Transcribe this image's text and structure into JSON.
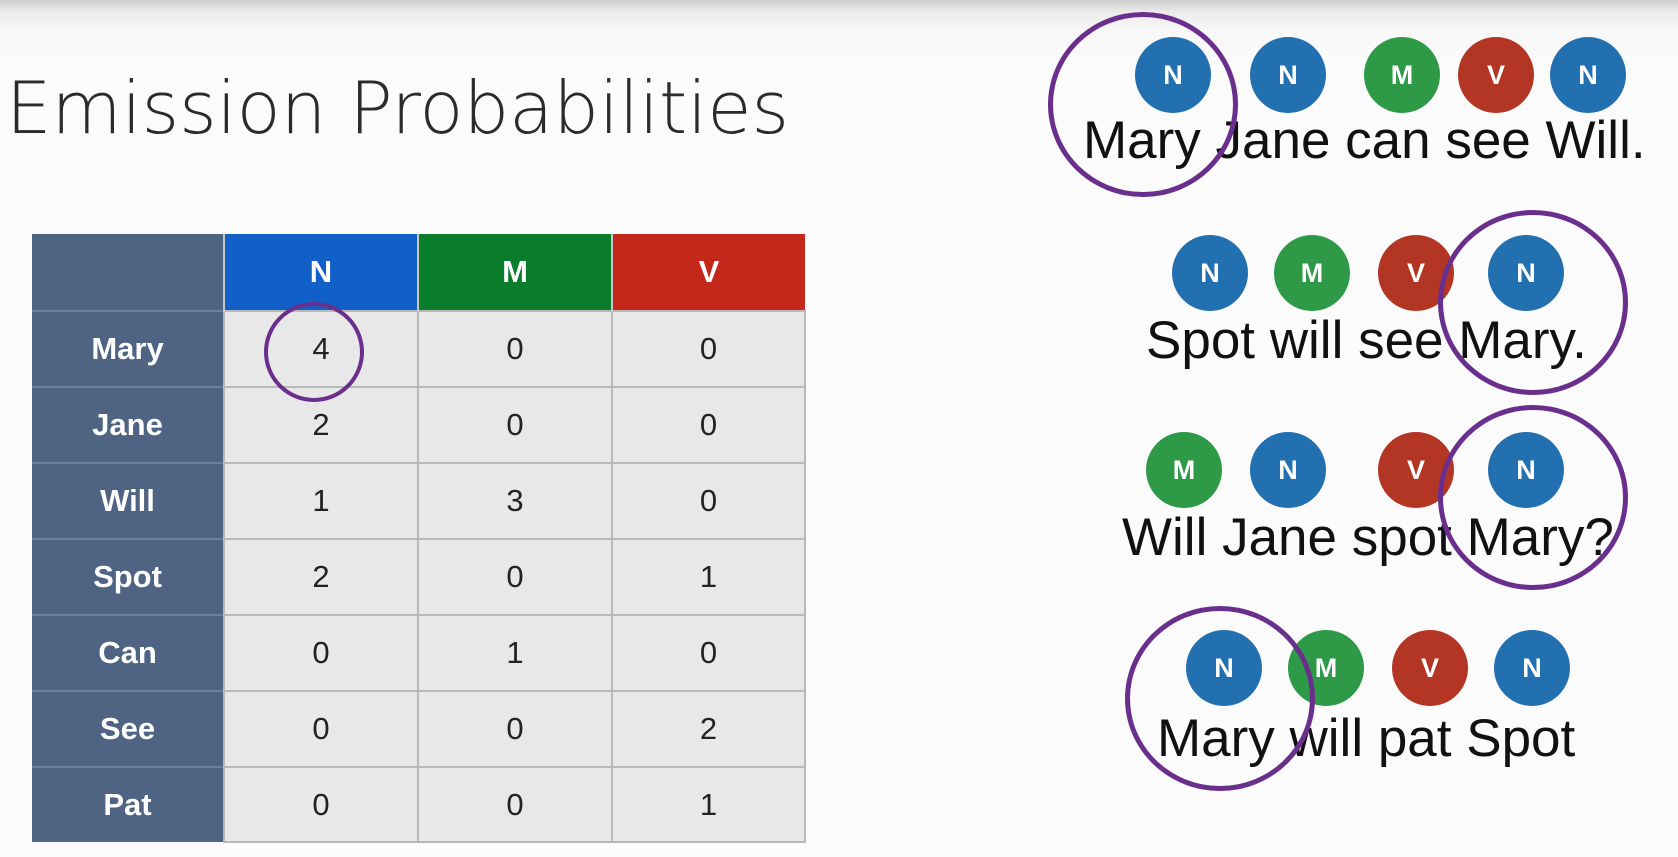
{
  "title": "Emission Probabilities",
  "table": {
    "columns": [
      "N",
      "M",
      "V"
    ],
    "column_colors": [
      "#1060c8",
      "#0a7d2c",
      "#c3281b"
    ],
    "rows": [
      {
        "word": "Mary",
        "values": [
          "4",
          "0",
          "0"
        ]
      },
      {
        "word": "Jane",
        "values": [
          "2",
          "0",
          "0"
        ]
      },
      {
        "word": "Will",
        "values": [
          "1",
          "3",
          "0"
        ]
      },
      {
        "word": "Spot",
        "values": [
          "2",
          "0",
          "1"
        ]
      },
      {
        "word": "Can",
        "values": [
          "0",
          "1",
          "0"
        ]
      },
      {
        "word": "See",
        "values": [
          "0",
          "0",
          "2"
        ]
      },
      {
        "word": "Pat",
        "values": [
          "0",
          "0",
          "1"
        ]
      }
    ]
  },
  "tag_colors": {
    "N": "#2370b0",
    "M": "#2e9a48",
    "V": "#b33624"
  },
  "sentences": [
    {
      "text": "Mary Jane can see Will.",
      "tags": [
        "N",
        "N",
        "M",
        "V",
        "N"
      ]
    },
    {
      "text": "Spot will see Mary.",
      "tags": [
        "N",
        "M",
        "V",
        "N"
      ]
    },
    {
      "text": "Will Jane spot Mary?",
      "tags": [
        "M",
        "N",
        "V",
        "N"
      ]
    },
    {
      "text": "Mary will pat Spot",
      "tags": [
        "N",
        "M",
        "V",
        "N"
      ]
    }
  ]
}
